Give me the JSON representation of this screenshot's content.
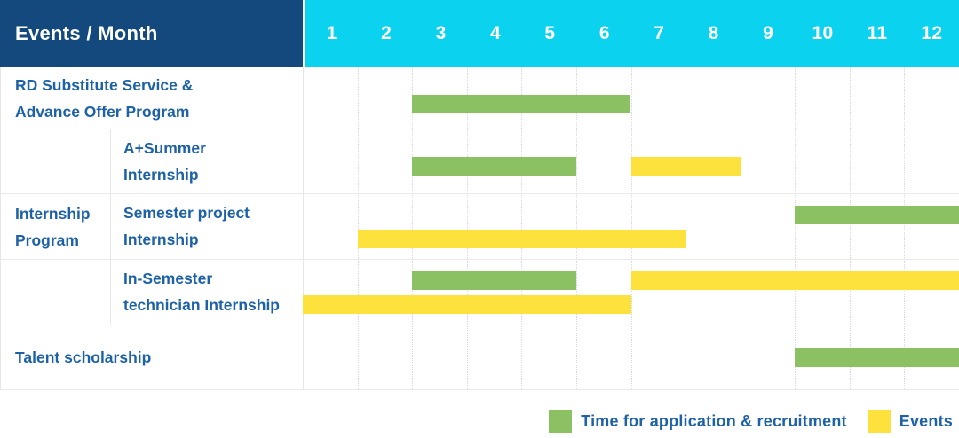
{
  "header": {
    "corner_label": "Events / Month"
  },
  "labels": {
    "row1": [
      "RD Substitute Service &",
      "Advance Offer Program"
    ],
    "group": [
      "Internship",
      "Program"
    ],
    "row2": [
      "A+Summer",
      "Internship"
    ],
    "row3": [
      "Semester project",
      "Internship"
    ],
    "row4": [
      "In-Semester",
      "technician Internship"
    ],
    "row5": "Talent scholarship"
  },
  "legend": {
    "items": [
      {
        "label": "Time for application & recruitment",
        "color": "#8BC163"
      },
      {
        "label": "Events",
        "color": "#FDE23E"
      }
    ]
  },
  "colors": {
    "header_blue": "#14497E",
    "month_cyan": "#0BD2EF",
    "green": "#8BC163",
    "yellow": "#FDE23E",
    "text_blue": "#1D61A7"
  },
  "chart_data": {
    "type": "gantt",
    "title": "Events / Month",
    "x_unit": "month",
    "months": [
      "1",
      "2",
      "3",
      "4",
      "5",
      "6",
      "7",
      "8",
      "9",
      "10",
      "11",
      "12"
    ],
    "x_range": [
      1,
      12
    ],
    "grid": "dotted-vertical",
    "legend_position": "bottom-right",
    "series_legend": [
      {
        "name": "Time for application & recruitment",
        "type": "application",
        "color": "#8BC163"
      },
      {
        "name": "Events",
        "type": "event",
        "color": "#FDE23E"
      }
    ],
    "rows": [
      {
        "group": null,
        "label": "RD Substitute Service & Advance Offer Program",
        "bars": [
          {
            "type": "application",
            "start": 3,
            "end": 6,
            "line": 0
          }
        ]
      },
      {
        "group": "Internship Program",
        "label": "A+Summer Internship",
        "bars": [
          {
            "type": "application",
            "start": 3,
            "end": 5,
            "line": 0
          },
          {
            "type": "event",
            "start": 7,
            "end": 8,
            "line": 0
          }
        ]
      },
      {
        "group": "Internship Program",
        "label": "Semester project Internship",
        "bars": [
          {
            "type": "application",
            "start": 10,
            "end": 12,
            "line": 0
          },
          {
            "type": "event",
            "start": 2,
            "end": 7,
            "line": 1
          }
        ]
      },
      {
        "group": "Internship Program",
        "label": "In-Semester technician Internship",
        "bars": [
          {
            "type": "application",
            "start": 3,
            "end": 5,
            "line": 0
          },
          {
            "type": "event",
            "start": 7,
            "end": 12,
            "line": 0
          },
          {
            "type": "event",
            "start": 1,
            "end": 6,
            "line": 1
          }
        ]
      },
      {
        "group": null,
        "label": "Talent scholarship",
        "bars": [
          {
            "type": "application",
            "start": 10,
            "end": 12,
            "line": 0
          }
        ]
      }
    ]
  }
}
